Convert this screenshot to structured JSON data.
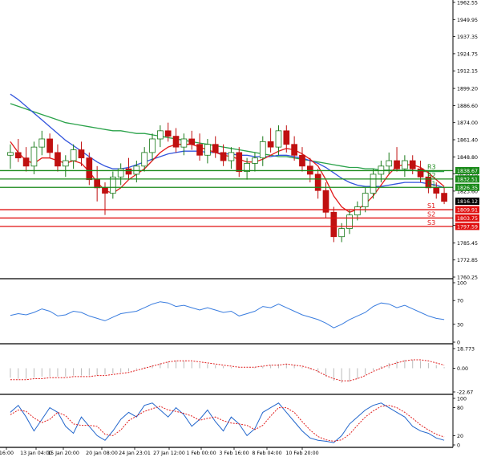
{
  "chart_data": {
    "type": "candlestick",
    "main_panel": {
      "y_ticks": [
        "1962.55",
        "1949.95",
        "1937.35",
        "1924.75",
        "1912.15",
        "1899.20",
        "1886.60",
        "1874.00",
        "1861.40",
        "1848.80",
        "1836.20",
        "1823.60",
        "1798.40",
        "1785.45",
        "1772.85",
        "1760.25"
      ],
      "ylim": [
        1760.25,
        1962.55
      ],
      "ohlc": [
        [
          1850,
          1858,
          1840,
          1852
        ],
        [
          1852,
          1862,
          1845,
          1848
        ],
        [
          1848,
          1856,
          1838,
          1842
        ],
        [
          1842,
          1860,
          1836,
          1856
        ],
        [
          1856,
          1868,
          1850,
          1862
        ],
        [
          1862,
          1866,
          1848,
          1852
        ],
        [
          1852,
          1858,
          1838,
          1842
        ],
        [
          1842,
          1850,
          1834,
          1846
        ],
        [
          1846,
          1858,
          1840,
          1854
        ],
        [
          1854,
          1860,
          1842,
          1848
        ],
        [
          1848,
          1852,
          1828,
          1832
        ],
        [
          1832,
          1842,
          1816,
          1826
        ],
        [
          1826,
          1830,
          1806,
          1822
        ],
        [
          1822,
          1838,
          1818,
          1834
        ],
        [
          1834,
          1844,
          1828,
          1840
        ],
        [
          1840,
          1848,
          1832,
          1836
        ],
        [
          1836,
          1846,
          1830,
          1842
        ],
        [
          1842,
          1856,
          1838,
          1852
        ],
        [
          1852,
          1866,
          1846,
          1862
        ],
        [
          1862,
          1872,
          1856,
          1868
        ],
        [
          1868,
          1874,
          1860,
          1864
        ],
        [
          1864,
          1870,
          1852,
          1856
        ],
        [
          1856,
          1866,
          1850,
          1862
        ],
        [
          1862,
          1868,
          1854,
          1858
        ],
        [
          1858,
          1866,
          1846,
          1850
        ],
        [
          1850,
          1862,
          1844,
          1858
        ],
        [
          1858,
          1864,
          1848,
          1852
        ],
        [
          1852,
          1858,
          1842,
          1846
        ],
        [
          1846,
          1856,
          1840,
          1852
        ],
        [
          1852,
          1856,
          1834,
          1838
        ],
        [
          1838,
          1848,
          1832,
          1844
        ],
        [
          1844,
          1852,
          1838,
          1848
        ],
        [
          1848,
          1864,
          1842,
          1860
        ],
        [
          1860,
          1870,
          1852,
          1856
        ],
        [
          1856,
          1872,
          1850,
          1868
        ],
        [
          1868,
          1872,
          1852,
          1858
        ],
        [
          1858,
          1864,
          1846,
          1850
        ],
        [
          1850,
          1856,
          1838,
          1842
        ],
        [
          1842,
          1848,
          1830,
          1836
        ],
        [
          1836,
          1840,
          1818,
          1824
        ],
        [
          1824,
          1830,
          1804,
          1808
        ],
        [
          1808,
          1812,
          1786,
          1790
        ],
        [
          1790,
          1800,
          1786,
          1796
        ],
        [
          1796,
          1810,
          1792,
          1806
        ],
        [
          1806,
          1816,
          1802,
          1812
        ],
        [
          1812,
          1826,
          1808,
          1822
        ],
        [
          1822,
          1840,
          1818,
          1836
        ],
        [
          1836,
          1846,
          1830,
          1842
        ],
        [
          1842,
          1852,
          1836,
          1846
        ],
        [
          1846,
          1856,
          1838,
          1840
        ],
        [
          1840,
          1850,
          1834,
          1846
        ],
        [
          1846,
          1850,
          1836,
          1840
        ],
        [
          1840,
          1846,
          1830,
          1834
        ],
        [
          1834,
          1838,
          1822,
          1826
        ],
        [
          1826,
          1830,
          1818,
          1822
        ],
        [
          1822,
          1826,
          1814,
          1816
        ]
      ],
      "ma_fast": [
        1860,
        1852,
        1846,
        1844,
        1848,
        1848,
        1846,
        1844,
        1846,
        1844,
        1838,
        1830,
        1824,
        1822,
        1826,
        1832,
        1836,
        1840,
        1846,
        1852,
        1856,
        1858,
        1858,
        1858,
        1856,
        1854,
        1852,
        1850,
        1849,
        1847,
        1845,
        1845,
        1847,
        1850,
        1853,
        1855,
        1854,
        1851,
        1847,
        1842,
        1832,
        1820,
        1812,
        1808,
        1810,
        1814,
        1820,
        1828,
        1836,
        1842,
        1843,
        1843,
        1841,
        1837,
        1832,
        1827
      ],
      "ma_mid": [
        1895,
        1891,
        1886,
        1881,
        1876,
        1871,
        1866,
        1861,
        1857,
        1853,
        1849,
        1845,
        1842,
        1840,
        1840,
        1841,
        1843,
        1845,
        1847,
        1849,
        1851,
        1852,
        1853,
        1853,
        1853,
        1852,
        1852,
        1851,
        1851,
        1850,
        1850,
        1849,
        1849,
        1849,
        1850,
        1850,
        1849,
        1848,
        1846,
        1844,
        1841,
        1837,
        1833,
        1830,
        1828,
        1827,
        1827,
        1827,
        1828,
        1829,
        1830,
        1830,
        1830,
        1829,
        1828,
        1826
      ],
      "ma_slow": [
        1888,
        1886,
        1884,
        1882,
        1880,
        1878,
        1876,
        1874,
        1873,
        1872,
        1871,
        1870,
        1869,
        1868,
        1868,
        1867,
        1866,
        1866,
        1865,
        1864,
        1863,
        1862,
        1861,
        1860,
        1859,
        1858,
        1857,
        1856,
        1855,
        1854,
        1853,
        1852,
        1851,
        1850,
        1849,
        1849,
        1848,
        1847,
        1846,
        1845,
        1844,
        1843,
        1842,
        1841,
        1841,
        1840,
        1840,
        1839,
        1839,
        1839,
        1839,
        1839,
        1838,
        1838,
        1838,
        1838
      ],
      "levels": [
        {
          "name": "R3",
          "value": 1838.67,
          "color": "#1a8a1a"
        },
        {
          "name": "R2",
          "value": 1832.51,
          "color": "#1a8a1a"
        },
        {
          "name": "R1",
          "value": 1826.35,
          "color": "#1a8a1a"
        },
        {
          "name": "S1",
          "value": 1809.91,
          "color": "#e01010"
        },
        {
          "name": "S2",
          "value": 1803.75,
          "color": "#e01010"
        },
        {
          "name": "S3",
          "value": 1797.59,
          "color": "#e01010"
        }
      ],
      "last_price": "1816.12",
      "upper_band_label": "1823.60"
    },
    "rsi_panel": {
      "y_ticks": [
        "100",
        "70",
        "30",
        "0"
      ],
      "ylim": [
        0,
        100
      ],
      "values": [
        45,
        48,
        46,
        50,
        56,
        52,
        44,
        46,
        52,
        50,
        44,
        40,
        36,
        42,
        48,
        50,
        52,
        58,
        64,
        68,
        66,
        60,
        62,
        58,
        54,
        58,
        54,
        50,
        52,
        44,
        48,
        52,
        60,
        58,
        64,
        58,
        52,
        46,
        42,
        38,
        32,
        24,
        30,
        38,
        44,
        50,
        60,
        66,
        64,
        58,
        62,
        56,
        50,
        44,
        40,
        38
      ]
    },
    "macd_panel": {
      "y_ticks": [
        "18.773",
        "0.00",
        "-22.67"
      ],
      "ylim": [
        -22.67,
        18.773
      ],
      "histogram": [
        -9,
        -10,
        -10,
        -9,
        -8,
        -8,
        -8,
        -8,
        -7,
        -7,
        -7,
        -7,
        -6,
        -5,
        -4,
        -3,
        -1,
        1,
        3,
        5,
        6,
        7,
        7,
        6,
        5,
        4,
        3,
        2,
        1,
        0,
        0,
        1,
        2,
        3,
        4,
        4,
        3,
        1,
        -1,
        -4,
        -8,
        -12,
        -14,
        -13,
        -10,
        -6,
        -2,
        2,
        5,
        7,
        8,
        8,
        7,
        5,
        3,
        1
      ],
      "signal": [
        -11,
        -11,
        -11,
        -10,
        -10,
        -9,
        -9,
        -9,
        -8,
        -8,
        -8,
        -7,
        -7,
        -6,
        -5,
        -4,
        -2,
        0,
        2,
        4,
        6,
        7,
        7,
        7,
        6,
        5,
        4,
        3,
        2,
        1,
        1,
        1,
        2,
        3,
        3,
        4,
        3,
        2,
        0,
        -3,
        -7,
        -10,
        -12,
        -12,
        -10,
        -7,
        -3,
        0,
        3,
        5,
        7,
        8,
        8,
        7,
        5,
        3
      ]
    },
    "stoch_panel": {
      "y_ticks": [
        "100",
        "80",
        "20",
        "0"
      ],
      "ylim": [
        0,
        100
      ],
      "k": [
        70,
        85,
        60,
        30,
        55,
        80,
        70,
        40,
        25,
        60,
        40,
        20,
        10,
        30,
        55,
        70,
        60,
        85,
        90,
        75,
        60,
        80,
        65,
        40,
        55,
        75,
        50,
        30,
        60,
        45,
        20,
        35,
        70,
        80,
        90,
        70,
        50,
        30,
        15,
        10,
        8,
        5,
        20,
        45,
        60,
        75,
        85,
        90,
        80,
        70,
        60,
        40,
        30,
        25,
        15,
        10
      ],
      "d": [
        65,
        75,
        72,
        58,
        48,
        55,
        70,
        63,
        45,
        42,
        42,
        40,
        23,
        20,
        32,
        52,
        62,
        72,
        78,
        83,
        75,
        72,
        68,
        62,
        53,
        57,
        60,
        52,
        47,
        45,
        42,
        33,
        42,
        62,
        80,
        80,
        70,
        50,
        32,
        18,
        11,
        8,
        11,
        23,
        42,
        60,
        73,
        83,
        85,
        80,
        70,
        57,
        43,
        32,
        23,
        17
      ]
    },
    "x_ticks": [
      "16:00",
      "13 Jan 04:00",
      "15 Jan 20:00",
      "20 Jan 08:00",
      "24 Jan 23:01",
      "27 Jan 12:00",
      "1 Feb 00:00",
      "3 Feb 16:00",
      "8 Feb 04:00",
      "10 Feb 20:00"
    ],
    "colors": {
      "up_candle": "#1a7a1a",
      "down_candle": "#c01010",
      "ma_fast": "#e21b1b",
      "ma_mid": "#3355dd",
      "ma_slow": "#2aa24a",
      "rsi": "#3a7ddf",
      "macd_signal": "#e02020",
      "macd_hist": "#bbbbbb",
      "stoch_k": "#2266cc",
      "stoch_d": "#e02020",
      "price_tag_bg": "#000000"
    }
  }
}
